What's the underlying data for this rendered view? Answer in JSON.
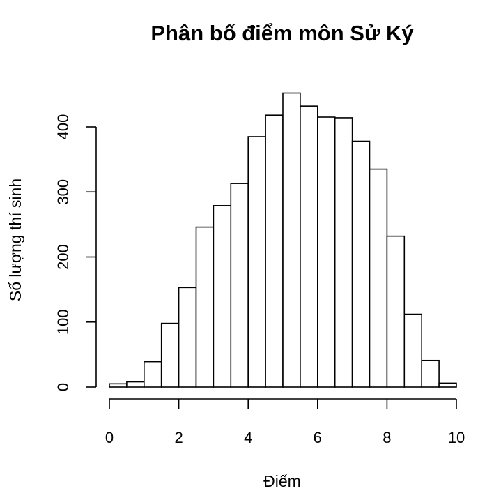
{
  "chart_data": {
    "type": "histogram",
    "title": "Phân bố điểm môn Sử Ký",
    "xlabel": "Điểm",
    "ylabel": "Số lượng thí sinh",
    "xlim": [
      0,
      10
    ],
    "ylim": [
      0,
      450
    ],
    "x_ticks": [
      0,
      2,
      4,
      6,
      8,
      10
    ],
    "y_ticks": [
      0,
      100,
      200,
      300,
      400
    ],
    "bin_width": 0.5,
    "bins": [
      {
        "start": 0.0,
        "end": 0.5,
        "count": 5
      },
      {
        "start": 0.5,
        "end": 1.0,
        "count": 8
      },
      {
        "start": 1.0,
        "end": 1.5,
        "count": 39
      },
      {
        "start": 1.5,
        "end": 2.0,
        "count": 98
      },
      {
        "start": 2.0,
        "end": 2.5,
        "count": 153
      },
      {
        "start": 2.5,
        "end": 3.0,
        "count": 246
      },
      {
        "start": 3.0,
        "end": 3.5,
        "count": 279
      },
      {
        "start": 3.5,
        "end": 4.0,
        "count": 313
      },
      {
        "start": 4.0,
        "end": 4.5,
        "count": 385
      },
      {
        "start": 4.5,
        "end": 5.0,
        "count": 418
      },
      {
        "start": 5.0,
        "end": 5.5,
        "count": 452
      },
      {
        "start": 5.5,
        "end": 6.0,
        "count": 432
      },
      {
        "start": 6.0,
        "end": 6.5,
        "count": 415
      },
      {
        "start": 6.5,
        "end": 7.0,
        "count": 414
      },
      {
        "start": 7.0,
        "end": 7.5,
        "count": 378
      },
      {
        "start": 7.5,
        "end": 8.0,
        "count": 335
      },
      {
        "start": 8.0,
        "end": 8.5,
        "count": 232
      },
      {
        "start": 8.5,
        "end": 9.0,
        "count": 112
      },
      {
        "start": 9.0,
        "end": 9.5,
        "count": 41
      },
      {
        "start": 9.5,
        "end": 10.0,
        "count": 6
      }
    ],
    "bar_fill": "#ffffff",
    "bar_stroke": "#000000",
    "grid": false,
    "legend": "none"
  }
}
